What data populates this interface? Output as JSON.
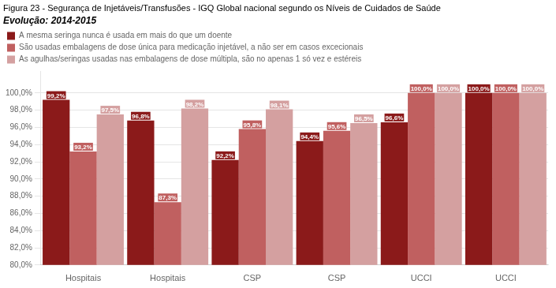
{
  "chart_data": {
    "type": "bar",
    "title": "Figura 23 - Segurança de Injetáveis/Transfusões - IGQ Global nacional segundo os Níveis de Cuidados de Saúde",
    "subtitle": "Evolução: 2014-2015",
    "categories": [
      "Hospitais",
      "Hospitais",
      "CSP",
      "CSP",
      "UCCI",
      "UCCI"
    ],
    "series": [
      {
        "name": "A mesma seringa nunca é usada em mais do que um doente",
        "color": "#8B1A1A",
        "values": [
          99.2,
          96.8,
          92.2,
          94.4,
          96.6,
          100.0
        ],
        "value_labels": [
          "99,2%",
          "96,8%",
          "92,2%",
          "94,4%",
          "96,6%",
          "100,0%"
        ]
      },
      {
        "name": "São usadas embalagens de dose única para medicação injetável, a não ser em casos excecionais",
        "color": "#C06060",
        "values": [
          93.2,
          87.3,
          95.8,
          95.6,
          100.0,
          100.0
        ],
        "value_labels": [
          "93,2%",
          "87,3%",
          "95,8%",
          "95,6%",
          "100,0%",
          "100,0%"
        ]
      },
      {
        "name": "As agulhas/seringas usadas nas embalagens de dose múltipla, são no apenas 1 só vez e estéreis",
        "color": "#D4A0A0",
        "values": [
          97.5,
          98.2,
          98.1,
          96.5,
          100.0,
          100.0
        ],
        "value_labels": [
          "97,5%",
          "98,2%",
          "98,1%",
          "96,5%",
          "100,0%",
          "100,0%"
        ]
      }
    ],
    "ylim": [
      80.0,
      102.5
    ],
    "yticks": [
      {
        "value": 80.0,
        "label": "80,0%"
      },
      {
        "value": 82.0,
        "label": "82,0%"
      },
      {
        "value": 84.0,
        "label": "84,0%"
      },
      {
        "value": 86.0,
        "label": "86,0%"
      },
      {
        "value": 88.0,
        "label": "88,0%"
      },
      {
        "value": 90.0,
        "label": "90,0%"
      },
      {
        "value": 92.0,
        "label": "92,0%"
      },
      {
        "value": 94.0,
        "label": "94,0%"
      },
      {
        "value": 96.0,
        "label": "96,0%"
      },
      {
        "value": 98.0,
        "label": "98,0%"
      },
      {
        "value": 100.0,
        "label": "100,0%"
      }
    ],
    "grid": true,
    "legend": "top",
    "data_labels": true
  }
}
